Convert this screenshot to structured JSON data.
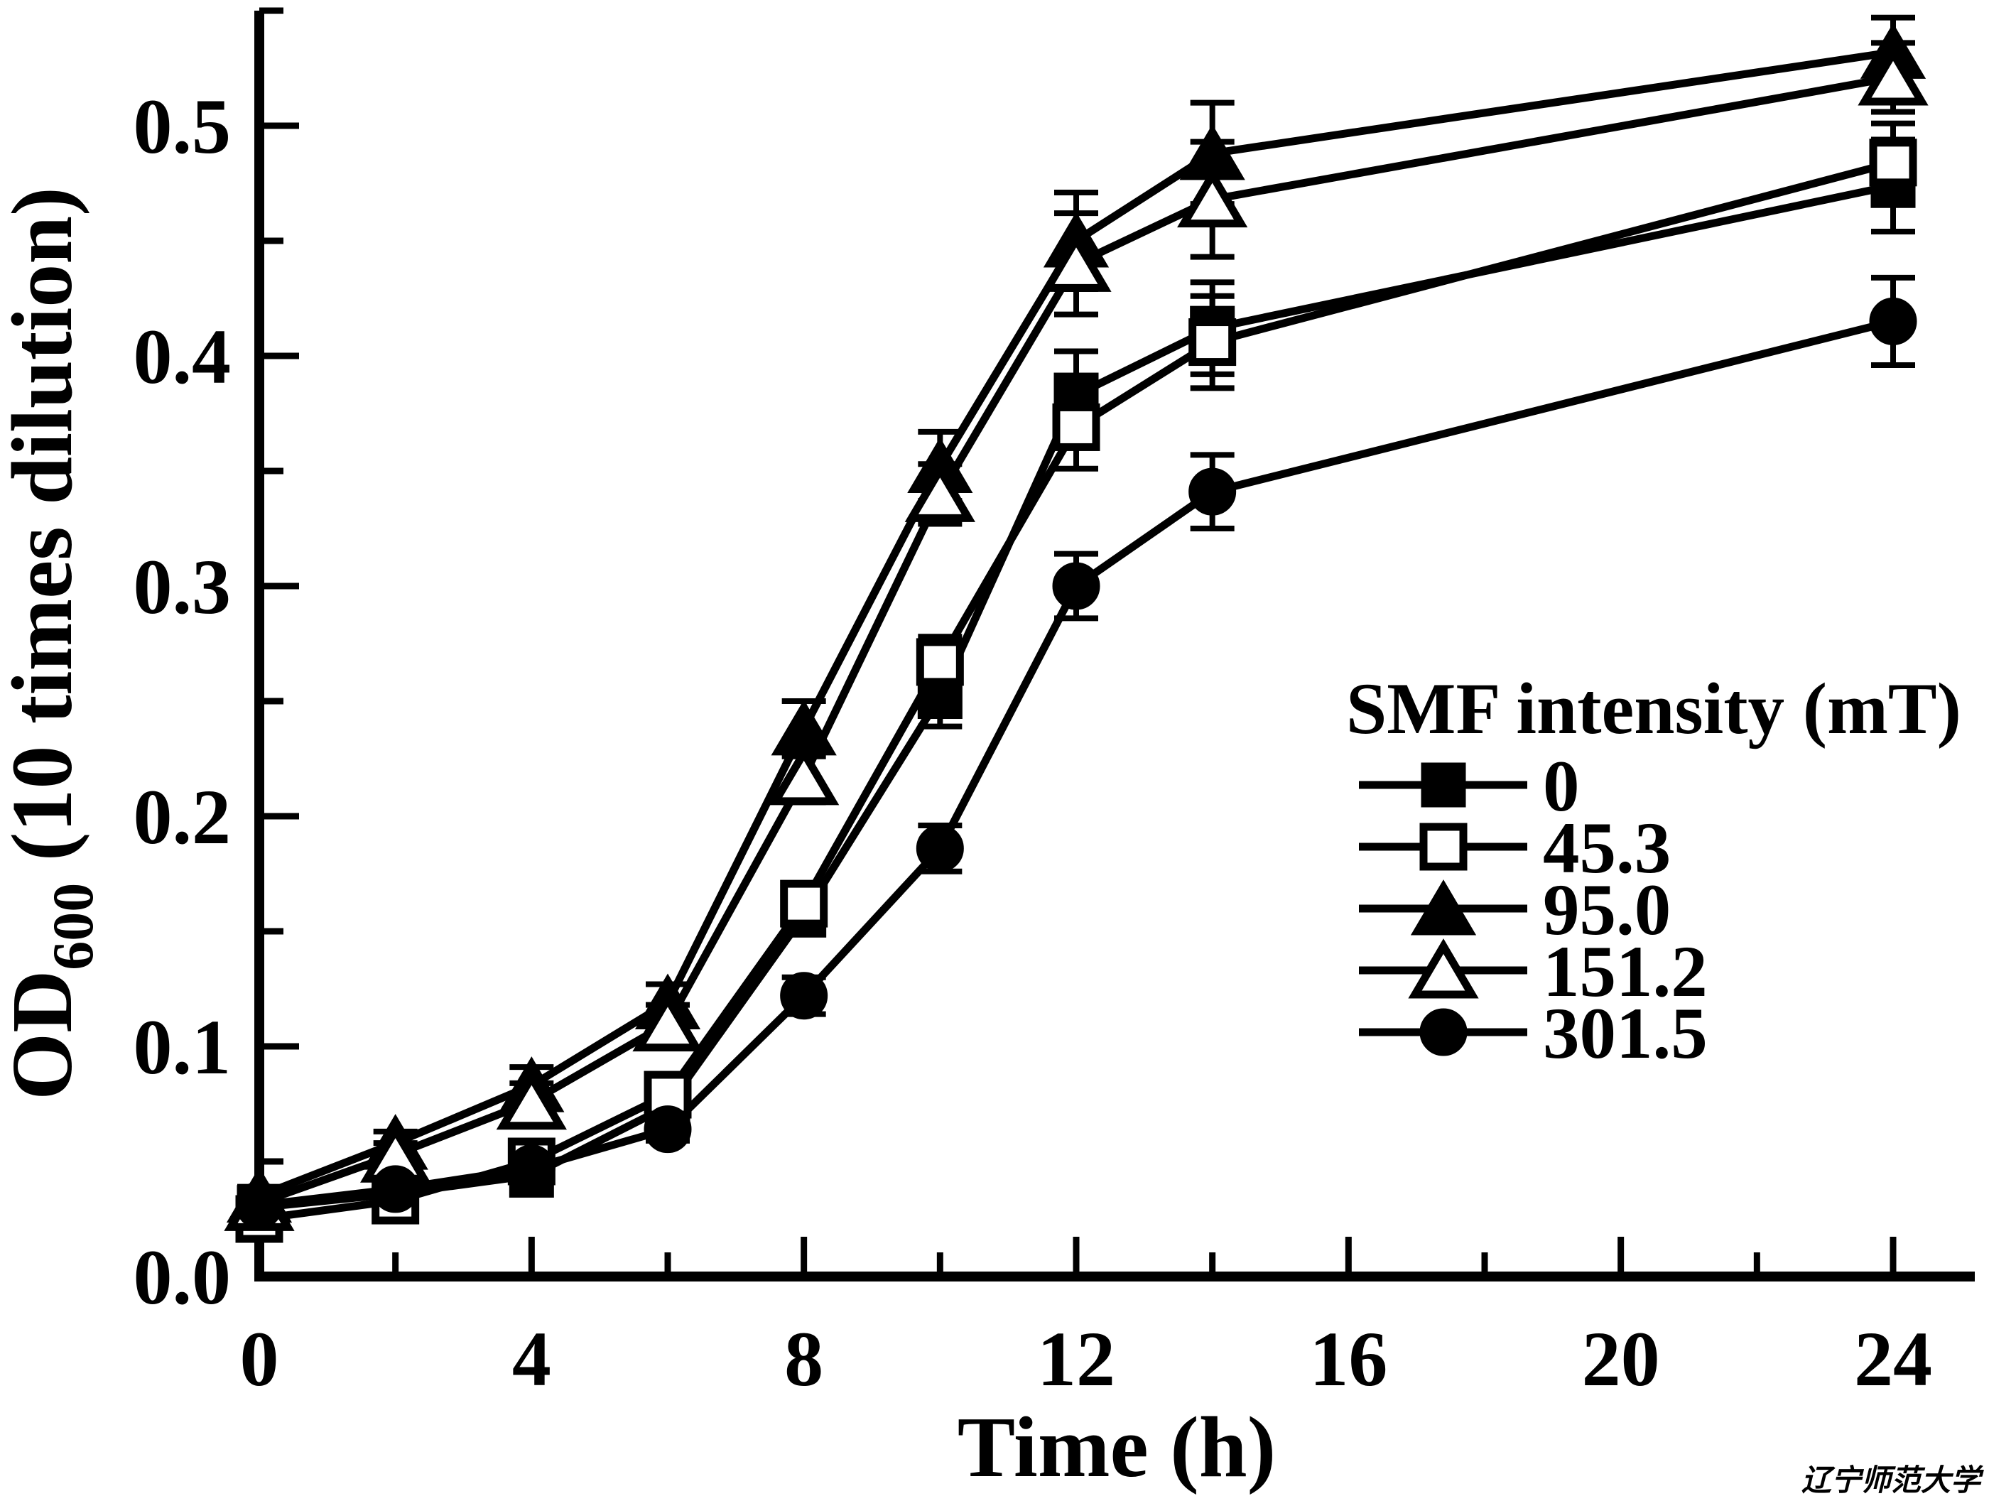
{
  "figure": {
    "background": "#ffffff",
    "ink": "#000000",
    "watermark": "辽宁师范大学"
  },
  "chart_data": {
    "type": "line",
    "title": "",
    "xlabel": "Time (h)",
    "ylabel_main": "OD",
    "ylabel_sub": "600",
    "ylabel_rest": " (10 times dilution)",
    "xlim": [
      0,
      25.2
    ],
    "ylim": [
      0,
      0.55
    ],
    "x_major_ticks": [
      0,
      4,
      8,
      12,
      16,
      20,
      24
    ],
    "x_major_labels": [
      "0",
      "4",
      "8",
      "12",
      "16",
      "20",
      "24"
    ],
    "x_minor_ticks": [
      2,
      6,
      10,
      14,
      18,
      22
    ],
    "y_major_ticks": [
      0,
      0.1,
      0.2,
      0.3,
      0.4,
      0.5
    ],
    "y_major_labels": [
      "0.0",
      "0.1",
      "0.2",
      "0.3",
      "0.4",
      "0.5"
    ],
    "y_minor_ticks": [
      0.05,
      0.15,
      0.25,
      0.35,
      0.45,
      0.55
    ],
    "grid": false,
    "legend_title": "SMF intensity (mT)",
    "legend_position": "right-middle",
    "x": [
      0,
      2,
      4,
      6,
      8,
      10,
      12,
      14,
      24
    ],
    "series": [
      {
        "name": "0",
        "marker": "square-filled",
        "values": [
          0.03,
          0.036,
          0.044,
          0.074,
          0.157,
          0.252,
          0.383,
          0.412,
          0.474
        ],
        "errors": [
          0.004,
          0.004,
          0.005,
          0.006,
          0.008,
          0.013,
          0.019,
          0.02,
          0.02
        ]
      },
      {
        "name": "45.3",
        "marker": "square-open",
        "values": [
          0.025,
          0.033,
          0.05,
          0.079,
          0.162,
          0.267,
          0.369,
          0.406,
          0.484
        ],
        "errors": [
          0.004,
          0.004,
          0.005,
          0.006,
          0.008,
          0.011,
          0.018,
          0.02,
          0.017
        ]
      },
      {
        "name": "95.0",
        "marker": "triangle-filled",
        "values": [
          0.035,
          0.058,
          0.083,
          0.119,
          0.238,
          0.352,
          0.45,
          0.488,
          0.532
        ],
        "errors": [
          0.004,
          0.005,
          0.008,
          0.008,
          0.012,
          0.015,
          0.021,
          0.022,
          0.015
        ]
      },
      {
        "name": "151.2",
        "marker": "triangle-open",
        "values": [
          0.032,
          0.053,
          0.076,
          0.11,
          0.217,
          0.34,
          0.44,
          0.468,
          0.521
        ],
        "errors": [
          0.004,
          0.005,
          0.008,
          0.008,
          0.011,
          0.013,
          0.022,
          0.025,
          0.015
        ]
      },
      {
        "name": "301.5",
        "marker": "circle-filled",
        "values": [
          0.031,
          0.038,
          0.047,
          0.064,
          0.122,
          0.186,
          0.3,
          0.341,
          0.415
        ],
        "errors": [
          0.004,
          0.004,
          0.005,
          0.005,
          0.008,
          0.01,
          0.014,
          0.016,
          0.019
        ]
      }
    ]
  }
}
